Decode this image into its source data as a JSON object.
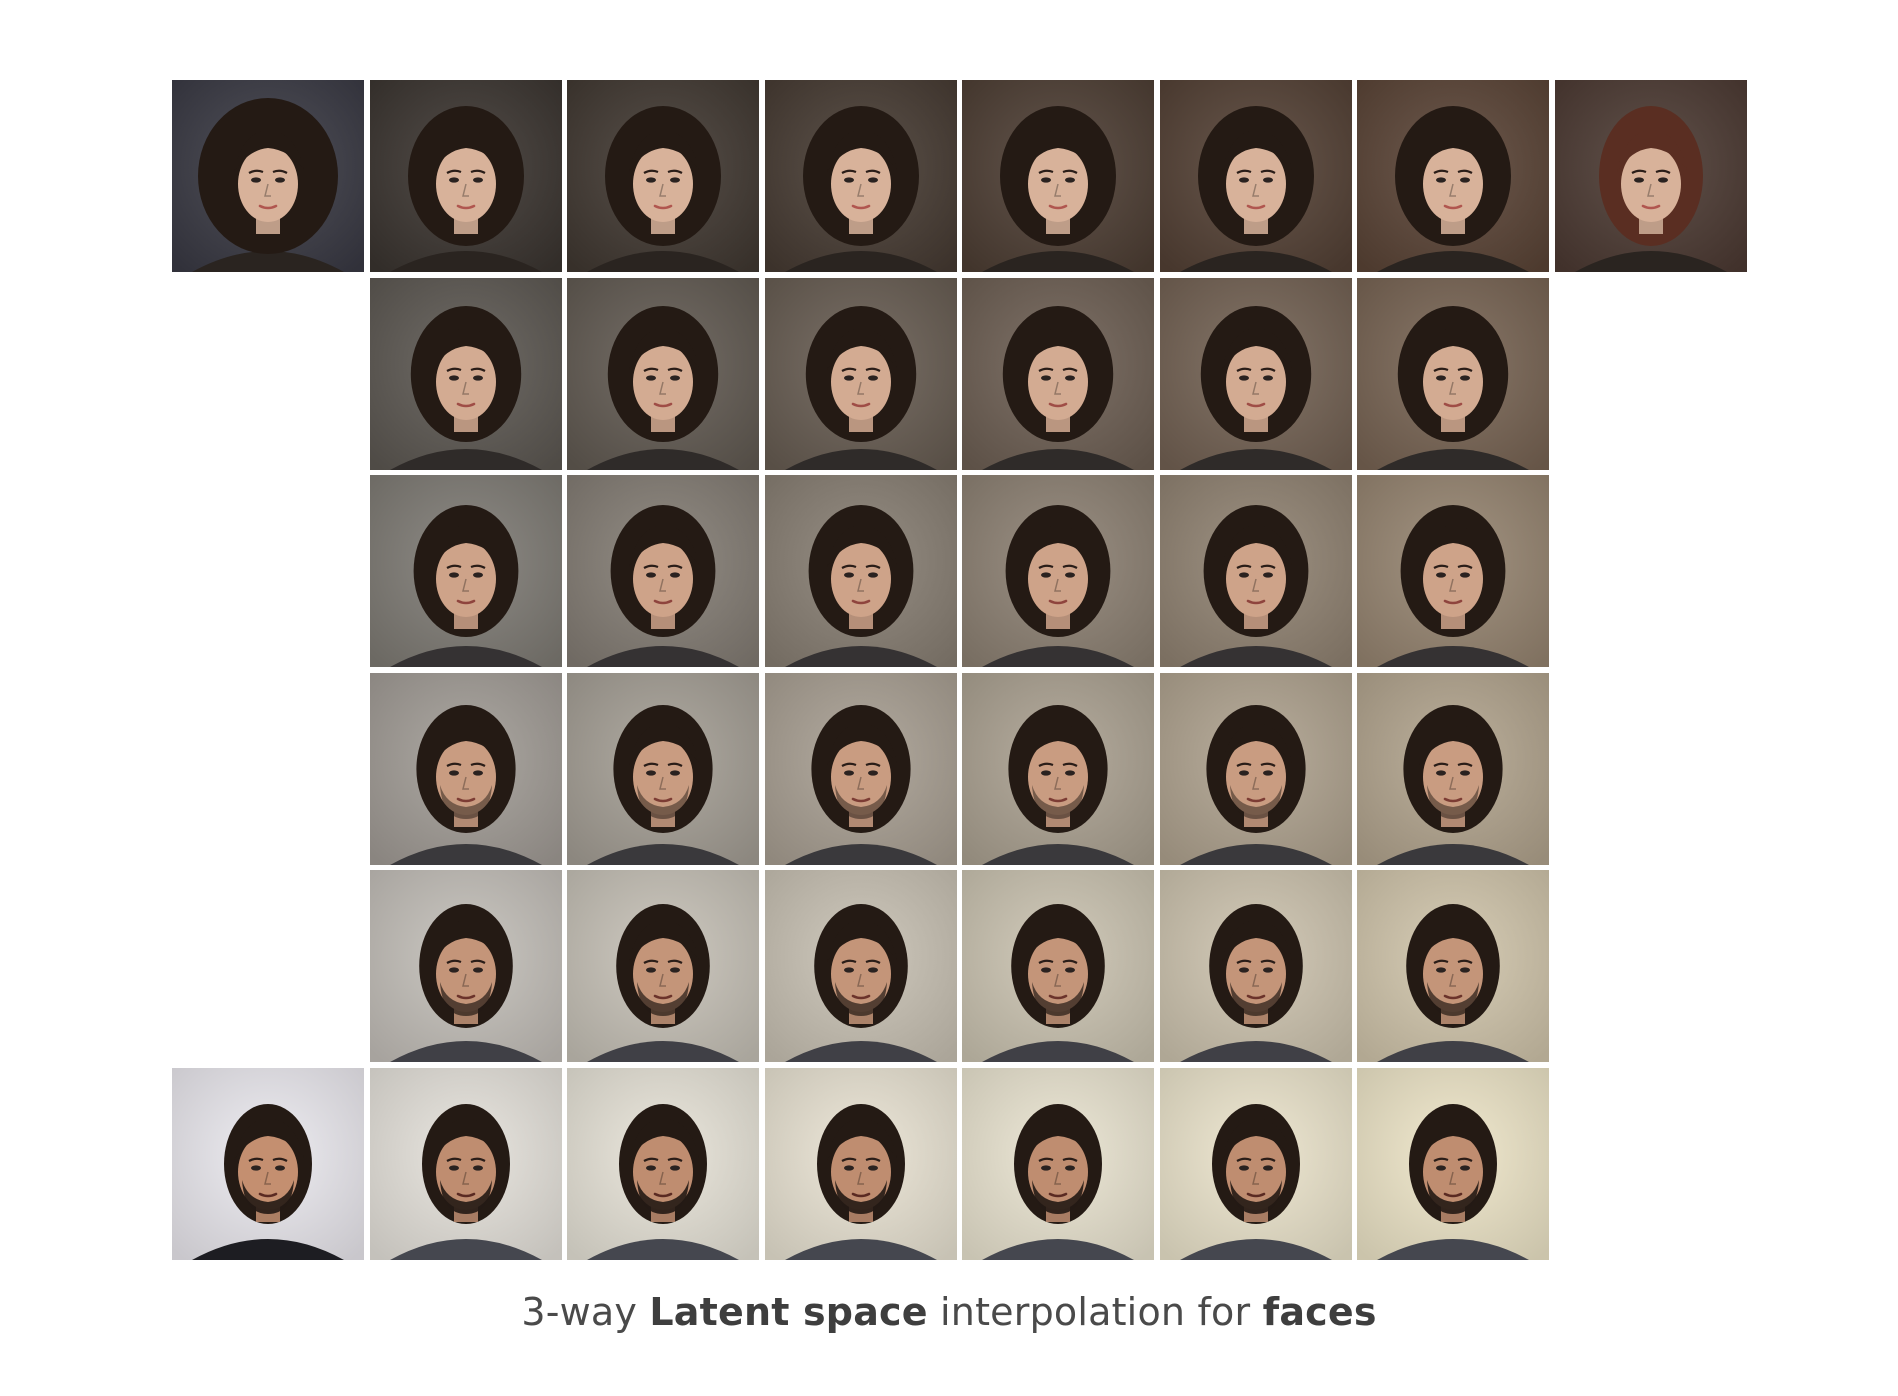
{
  "caption": {
    "prefix": "3-way ",
    "bold1": "Latent space",
    "middle": " interpolation for ",
    "bold2": "faces"
  },
  "grid": {
    "rows": [
      {
        "cells": [
          "source-a",
          "interp",
          "interp",
          "interp",
          "interp",
          "interp",
          "interp",
          "source-b"
        ]
      },
      {
        "cells": [
          "empty",
          "interp",
          "interp",
          "interp",
          "interp",
          "interp",
          "interp",
          "empty"
        ]
      },
      {
        "cells": [
          "empty",
          "interp",
          "interp",
          "interp",
          "interp",
          "interp",
          "interp",
          "empty"
        ]
      },
      {
        "cells": [
          "empty",
          "interp",
          "interp",
          "interp",
          "interp",
          "interp",
          "interp",
          "empty"
        ]
      },
      {
        "cells": [
          "empty",
          "interp",
          "interp",
          "interp",
          "interp",
          "interp",
          "interp",
          "empty"
        ]
      },
      {
        "cells": [
          "source-c",
          "interp",
          "interp",
          "interp",
          "interp",
          "interp",
          "interp",
          "empty"
        ]
      }
    ]
  },
  "colors": {
    "caption_text": "#4a4a4a",
    "bg_female_dark": "#3b3530",
    "bg_female_warm": "#5a4436",
    "bg_male_light": "#e6e3dc",
    "bg_male_warm": "#efe6c9",
    "hair_dark": "#241a14",
    "skin_light": "#d8b29a",
    "skin_tan": "#b98466"
  }
}
